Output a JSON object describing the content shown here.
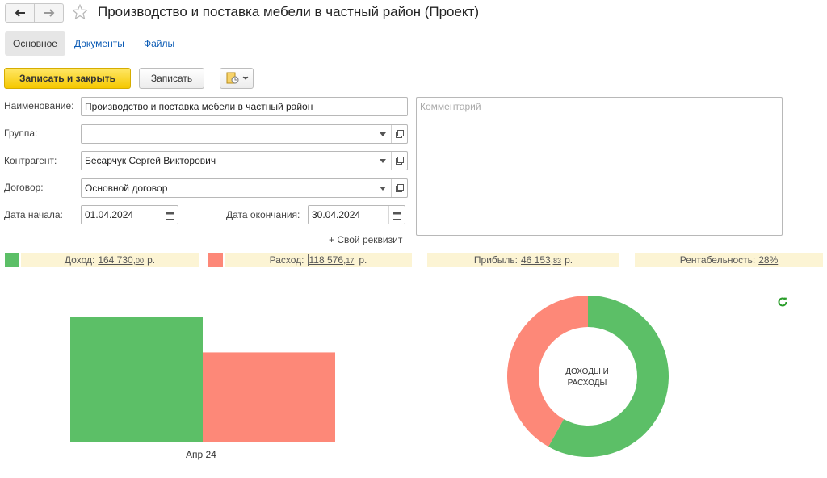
{
  "window": {
    "title": "Производство и поставка мебели в частный район (Проект)",
    "back_icon": "arrow-left-icon",
    "forward_icon": "arrow-right-icon",
    "favorite_icon": "star-icon"
  },
  "tabs": [
    {
      "label": "Основное",
      "active": true
    },
    {
      "label": "Документы",
      "active": false
    },
    {
      "label": "Файлы",
      "active": false
    }
  ],
  "toolbar": {
    "save_close_label": "Записать и закрыть",
    "save_label": "Записать",
    "more_icon": "document-clock-icon"
  },
  "form": {
    "name_label": "Наименование:",
    "name_value": "Производство и поставка мебели в частный район",
    "group_label": "Группа:",
    "group_value": "",
    "counterparty_label": "Контрагент:",
    "counterparty_value": "Бесарчук Сергей Викторович",
    "contract_label": "Договор:",
    "contract_value": "Основной договор",
    "start_label": "Дата начала:",
    "start_value": "01.04.2024",
    "end_label": "Дата окончания:",
    "end_value": "30.04.2024",
    "comment_placeholder": "Комментарий",
    "add_requisite": "+ Свой реквизит"
  },
  "stats": {
    "income_label": "Доход:",
    "income_int": "164 730,",
    "income_frac": "00",
    "income_unit": "р.",
    "expense_label": "Расход:",
    "expense_int": "118 576,",
    "expense_frac": "17",
    "expense_unit": "р.",
    "profit_label": "Прибыль:",
    "profit_int": "46 153,",
    "profit_frac": "83",
    "profit_unit": "р.",
    "rent_label": "Рентабельность:",
    "rent_value": "28%"
  },
  "colors": {
    "income": "#5cbf67",
    "expense": "#fd8878",
    "refresh": "#2a9d2a"
  },
  "chart_data": [
    {
      "type": "bar",
      "categories": [
        "Апр 24"
      ],
      "series": [
        {
          "values": [
            164730.0
          ],
          "color": "#5cbf67"
        },
        {
          "values": [
            118576.17
          ],
          "color": "#fd8878"
        }
      ]
    },
    {
      "type": "pie",
      "title": "ДОХОДЫ И РАСХОДЫ",
      "slices": [
        {
          "value": 164730.0,
          "color": "#5cbf67"
        },
        {
          "value": 118576.17,
          "color": "#fd8878"
        }
      ]
    }
  ]
}
